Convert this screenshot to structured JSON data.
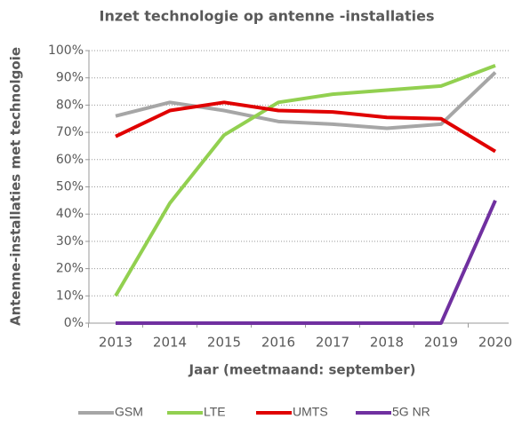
{
  "chart_data": {
    "type": "line",
    "title": "Inzet technologie op antenne  -installaties",
    "xlabel": "Jaar (meetmaand: september)",
    "ylabel": "Antenne-installaties met technolgoie",
    "categories": [
      "2013",
      "2014",
      "2015",
      "2016",
      "2017",
      "2018",
      "2019",
      "2020"
    ],
    "series": [
      {
        "name": "GSM",
        "color": "#a6a6a6",
        "values": [
          76,
          81,
          78,
          74,
          73,
          71.5,
          73,
          92
        ]
      },
      {
        "name": "LTE",
        "color": "#92d050",
        "values": [
          10,
          44,
          69,
          81,
          84,
          85.5,
          87,
          94.5
        ]
      },
      {
        "name": "UMTS",
        "color": "#e00000",
        "values": [
          68.5,
          78,
          81,
          78,
          77.5,
          75.5,
          75,
          63
        ]
      },
      {
        "name": "5G NR",
        "color": "#7030a0",
        "values": [
          0,
          0,
          0,
          0,
          0,
          0,
          0,
          45
        ]
      }
    ],
    "ylim": [
      0,
      100
    ],
    "yticks": [
      {
        "value": 0,
        "label": "0%"
      },
      {
        "value": 10,
        "label": "10%"
      },
      {
        "value": 20,
        "label": "20%"
      },
      {
        "value": 30,
        "label": "30%"
      },
      {
        "value": 40,
        "label": "40%"
      },
      {
        "value": 50,
        "label": "50%"
      },
      {
        "value": 60,
        "label": "60%"
      },
      {
        "value": 70,
        "label": "70%"
      },
      {
        "value": 80,
        "label": "80%"
      },
      {
        "value": 90,
        "label": "90%"
      },
      {
        "value": 100,
        "label": "100%"
      }
    ],
    "grid": true,
    "legend": "bottom"
  }
}
